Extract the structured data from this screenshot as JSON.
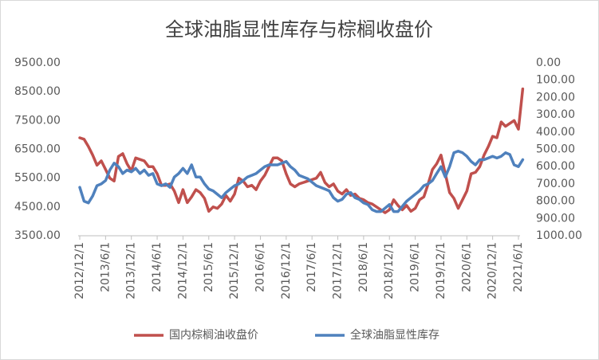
{
  "chart_data": {
    "type": "line",
    "title": "全球油脂显性库存与棕榈收盘价",
    "categories": [
      "2012/12/1",
      null,
      null,
      null,
      null,
      null,
      "2013/6/1",
      null,
      null,
      null,
      null,
      null,
      "2013/12/1",
      null,
      null,
      null,
      null,
      null,
      "2014/6/1",
      null,
      null,
      null,
      null,
      null,
      "2014/12/1",
      null,
      null,
      null,
      null,
      null,
      "2015/6/1",
      null,
      null,
      null,
      null,
      null,
      "2015/12/1",
      null,
      null,
      null,
      null,
      null,
      "2016/6/1",
      null,
      null,
      null,
      null,
      null,
      "2016/12/1",
      null,
      null,
      null,
      null,
      null,
      "2017/6/1",
      null,
      null,
      null,
      null,
      null,
      "2017/12/1",
      null,
      null,
      null,
      null,
      null,
      "2018/6/1",
      null,
      null,
      null,
      null,
      null,
      "2018/12/1",
      null,
      null,
      null,
      null,
      null,
      "2019/6/1",
      null,
      null,
      null,
      null,
      null,
      "2019/12/1",
      null,
      null,
      null,
      null,
      null,
      "2020/6/1",
      null,
      null,
      null,
      null,
      null,
      "2020/12/1",
      null,
      null,
      null,
      null,
      null,
      "2021/6/1",
      null
    ],
    "series": [
      {
        "name": "国内棕榈油收盘价",
        "color": "#c0504d",
        "values": [
          6900,
          6850,
          6600,
          6300,
          5950,
          6100,
          5800,
          5500,
          5400,
          6250,
          6350,
          6000,
          5750,
          6200,
          6150,
          6100,
          5900,
          5900,
          5650,
          5250,
          5250,
          5300,
          5050,
          4650,
          5100,
          4650,
          4850,
          5100,
          5000,
          4800,
          4350,
          4500,
          4450,
          4600,
          4900,
          4700,
          4950,
          5500,
          5400,
          5200,
          5250,
          5100,
          5400,
          5600,
          5900,
          6200,
          6200,
          6100,
          5650,
          5300,
          5200,
          5300,
          5350,
          5400,
          5450,
          5500,
          5700,
          5350,
          5200,
          5300,
          5050,
          4950,
          5100,
          4900,
          4950,
          4800,
          4750,
          4650,
          4600,
          4500,
          4400,
          4300,
          4400,
          4750,
          4550,
          4400,
          4550,
          4350,
          4450,
          4750,
          4850,
          5300,
          5800,
          6000,
          6300,
          5650,
          5000,
          4800,
          4450,
          4750,
          5050,
          5650,
          5700,
          5900,
          6300,
          6600,
          6950,
          6900,
          7450,
          7300,
          7400,
          7500,
          7200,
          8600
        ]
      },
      {
        "name": "全球油脂显性库存",
        "color": "#4f81bd",
        "axis": "y2",
        "values": [
          720,
          800,
          810,
          770,
          710,
          700,
          680,
          620,
          580,
          600,
          640,
          620,
          630,
          610,
          640,
          620,
          650,
          640,
          700,
          710,
          700,
          720,
          660,
          640,
          610,
          640,
          590,
          660,
          660,
          700,
          730,
          740,
          760,
          780,
          750,
          730,
          710,
          700,
          680,
          660,
          650,
          640,
          620,
          600,
          590,
          590,
          590,
          580,
          570,
          600,
          620,
          650,
          660,
          670,
          690,
          710,
          720,
          730,
          740,
          780,
          800,
          790,
          760,
          750,
          780,
          790,
          810,
          820,
          850,
          860,
          860,
          840,
          820,
          860,
          860,
          830,
          800,
          780,
          760,
          740,
          710,
          700,
          680,
          640,
          600,
          660,
          600,
          520,
          510,
          520,
          540,
          570,
          590,
          560,
          560,
          550,
          540,
          550,
          540,
          520,
          530,
          590,
          600,
          560
        ]
      }
    ],
    "ylim": [
      3500,
      9500
    ],
    "yticks": [
      {
        "value": 3500,
        "label": "3500.00"
      },
      {
        "value": 4500,
        "label": "4500.00"
      },
      {
        "value": 5500,
        "label": "5500.00"
      },
      {
        "value": 6500,
        "label": "6500.00"
      },
      {
        "value": 7500,
        "label": "7500.00"
      },
      {
        "value": 8500,
        "label": "8500.00"
      },
      {
        "value": 9500,
        "label": "9500.00"
      }
    ],
    "y2lim": [
      0,
      1000
    ],
    "y2_reversed": true,
    "y2ticks": [
      {
        "value": 0,
        "label": "0.00"
      },
      {
        "value": 100,
        "label": "100.00"
      },
      {
        "value": 200,
        "label": "200.00"
      },
      {
        "value": 300,
        "label": "300.00"
      },
      {
        "value": 400,
        "label": "400.00"
      },
      {
        "value": 500,
        "label": "500.00"
      },
      {
        "value": 600,
        "label": "600.00"
      },
      {
        "value": 700,
        "label": "700.00"
      },
      {
        "value": 800,
        "label": "800.00"
      },
      {
        "value": 900,
        "label": "900.00"
      },
      {
        "value": 1000,
        "label": "1000.00"
      }
    ],
    "grid": false,
    "legend": "bottom"
  }
}
